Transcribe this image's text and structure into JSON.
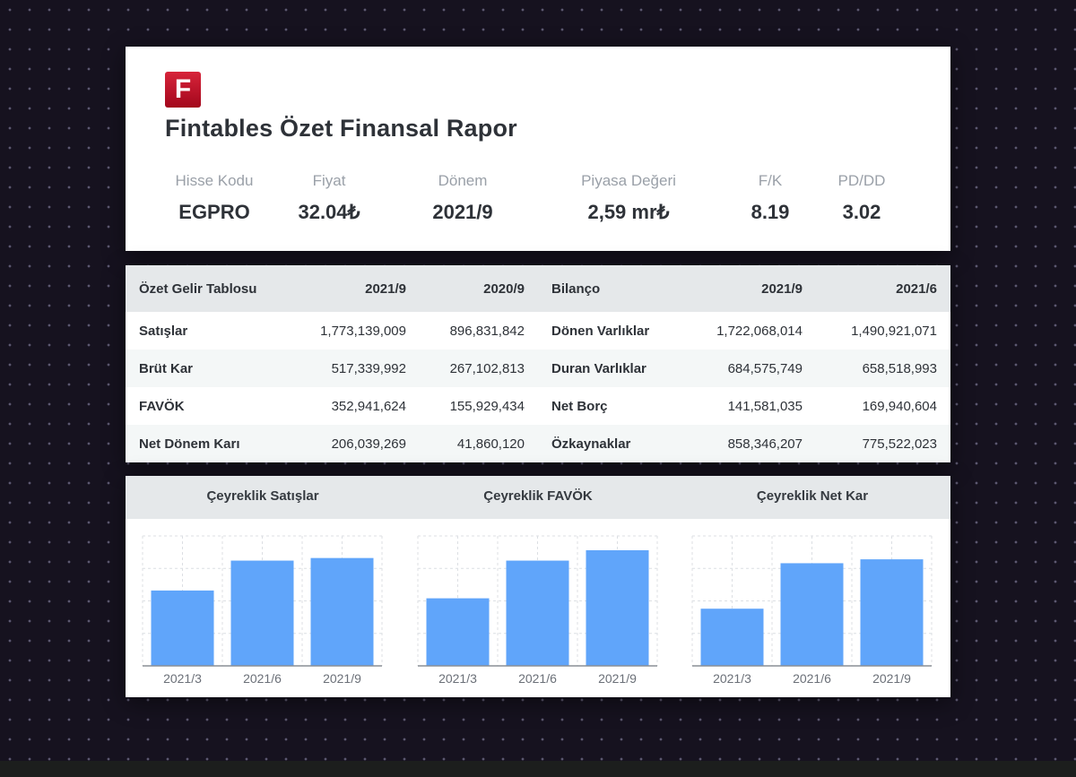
{
  "header": {
    "logo_letter": "F",
    "title": "Fintables Özet Finansal Rapor",
    "metrics": [
      {
        "label": "Hisse Kodu",
        "value": "EGPRO"
      },
      {
        "label": "Fiyat",
        "value": "32.04₺"
      },
      {
        "label": "Dönem",
        "value": "2021/9"
      },
      {
        "label": "Piyasa Değeri",
        "value": "2,59 mr₺"
      },
      {
        "label": "F/K",
        "value": "8.19"
      },
      {
        "label": "PD/DD",
        "value": "3.02"
      }
    ]
  },
  "income": {
    "title": "Özet Gelir Tablosu",
    "periods": [
      "2021/9",
      "2020/9"
    ],
    "rows": [
      {
        "name": "Satışlar",
        "v1": "1,773,139,009",
        "v2": "896,831,842"
      },
      {
        "name": "Brüt Kar",
        "v1": "517,339,992",
        "v2": "267,102,813"
      },
      {
        "name": "FAVÖK",
        "v1": "352,941,624",
        "v2": "155,929,434"
      },
      {
        "name": "Net Dönem Karı",
        "v1": "206,039,269",
        "v2": "41,860,120"
      }
    ]
  },
  "balance": {
    "title": "Bilanço",
    "periods": [
      "2021/9",
      "2021/6"
    ],
    "rows": [
      {
        "name": "Dönen Varlıklar",
        "v1": "1,722,068,014",
        "v2": "1,490,921,071"
      },
      {
        "name": "Duran Varlıklar",
        "v1": "684,575,749",
        "v2": "658,518,993"
      },
      {
        "name": "Net Borç",
        "v1": "141,581,035",
        "v2": "169,940,604"
      },
      {
        "name": "Özkaynaklar",
        "v1": "858,346,207",
        "v2": "775,522,023"
      }
    ]
  },
  "colors": {
    "bar": "#60a5fa",
    "logo": "#c2142e",
    "header_bg": "#e5e8ea"
  },
  "chart_data": [
    {
      "type": "bar",
      "title": "Çeyreklik Satışlar",
      "categories": [
        "2021/3",
        "2021/6",
        "2021/9"
      ],
      "values": [
        0.58,
        0.81,
        0.83
      ],
      "ylim": [
        0,
        1
      ],
      "grid": true
    },
    {
      "type": "bar",
      "title": "Çeyreklik FAVÖK",
      "categories": [
        "2021/3",
        "2021/6",
        "2021/9"
      ],
      "values": [
        0.52,
        0.81,
        0.89
      ],
      "ylim": [
        0,
        1
      ],
      "grid": true
    },
    {
      "type": "bar",
      "title": "Çeyreklik Net Kar",
      "categories": [
        "2021/3",
        "2021/6",
        "2021/9"
      ],
      "values": [
        0.44,
        0.79,
        0.82
      ],
      "ylim": [
        0,
        1
      ],
      "grid": true
    }
  ]
}
